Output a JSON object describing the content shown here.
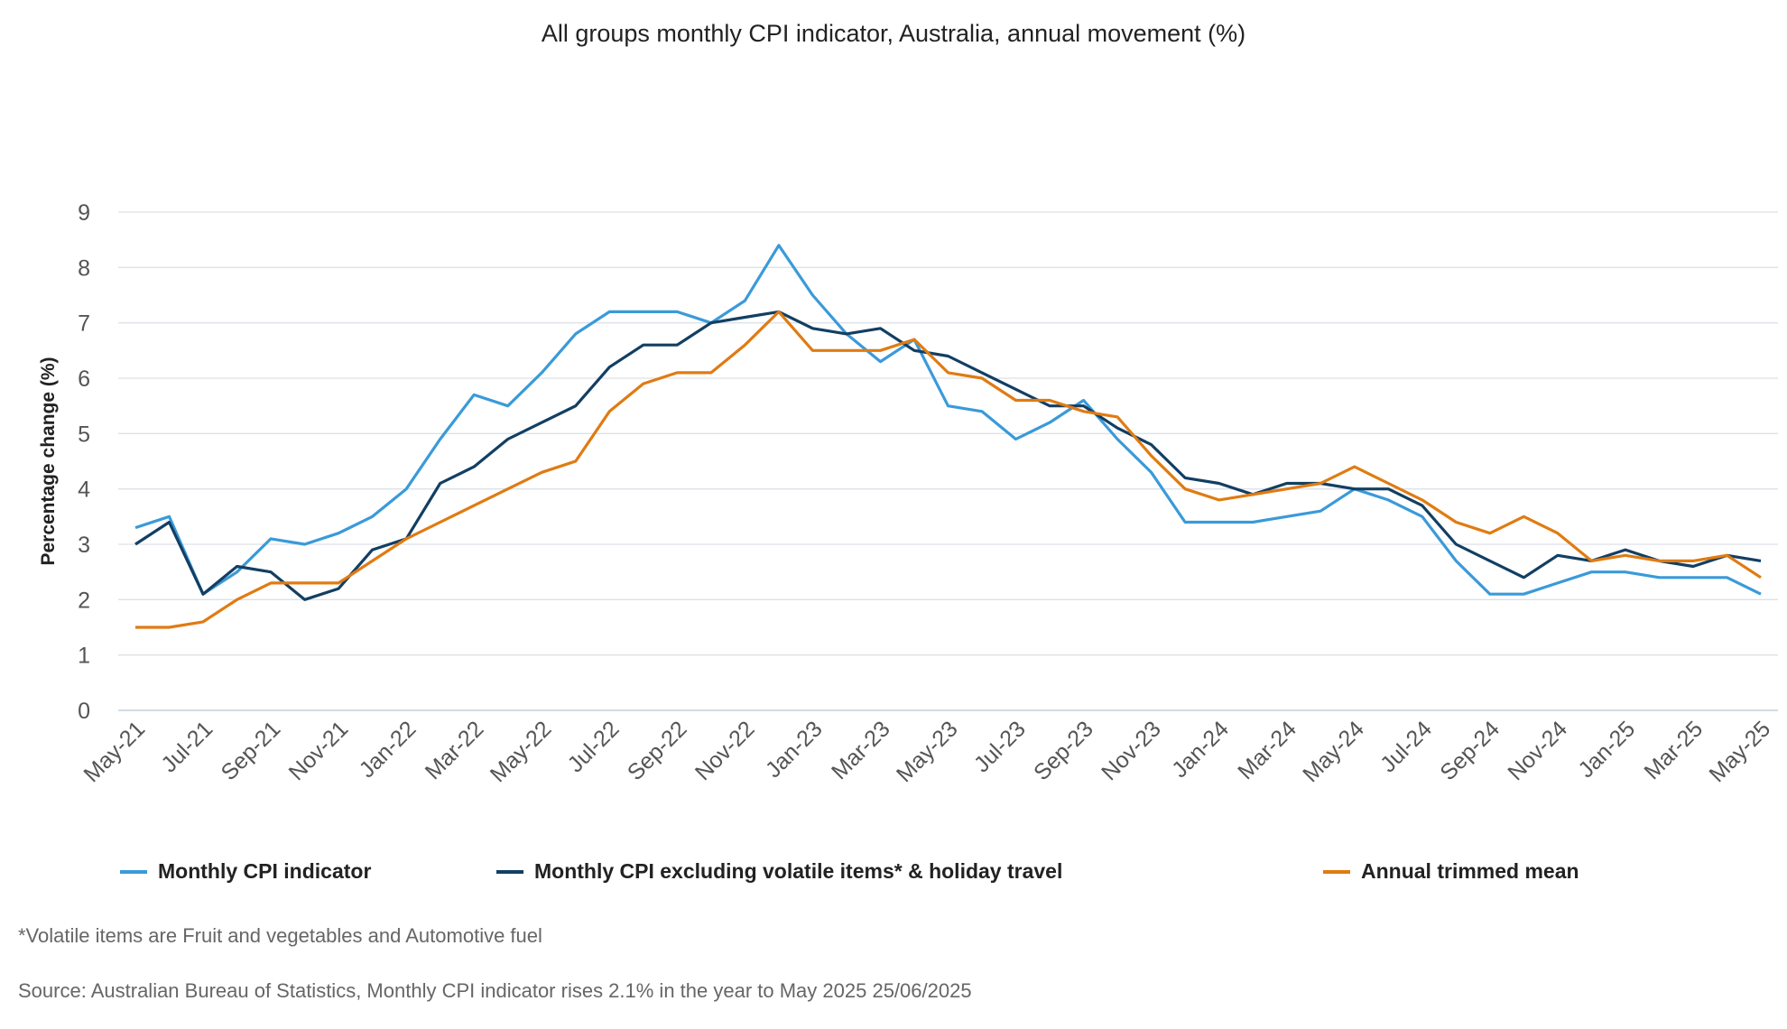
{
  "chart_data": {
    "type": "line",
    "title": "All groups monthly CPI indicator, Australia, annual movement (%)",
    "xlabel": "",
    "ylabel": "Percentage change (%)",
    "ylim": [
      0,
      9
    ],
    "yticks": [
      "0",
      "1",
      "2",
      "3",
      "4",
      "5",
      "6",
      "7",
      "8",
      "9"
    ],
    "grid": true,
    "legend_position": "bottom",
    "x": [
      "May-21",
      "Jun-21",
      "Jul-21",
      "Aug-21",
      "Sep-21",
      "Oct-21",
      "Nov-21",
      "Dec-21",
      "Jan-22",
      "Feb-22",
      "Mar-22",
      "Apr-22",
      "May-22",
      "Jun-22",
      "Jul-22",
      "Aug-22",
      "Sep-22",
      "Oct-22",
      "Nov-22",
      "Dec-22",
      "Jan-23",
      "Feb-23",
      "Mar-23",
      "Apr-23",
      "May-23",
      "Jun-23",
      "Jul-23",
      "Aug-23",
      "Sep-23",
      "Oct-23",
      "Nov-23",
      "Dec-23",
      "Jan-24",
      "Feb-24",
      "Mar-24",
      "Apr-24",
      "May-24",
      "Jun-24",
      "Jul-24",
      "Aug-24",
      "Sep-24",
      "Oct-24",
      "Nov-24",
      "Dec-24",
      "Jan-25",
      "Feb-25",
      "Mar-25",
      "Apr-25",
      "May-25"
    ],
    "xtick_labels": [
      "May-21",
      "Jul-21",
      "Sep-21",
      "Nov-21",
      "Jan-22",
      "Mar-22",
      "May-22",
      "Jul-22",
      "Sep-22",
      "Nov-22",
      "Jan-23",
      "Mar-23",
      "May-23",
      "Jul-23",
      "Sep-23",
      "Nov-23",
      "Jan-24",
      "Mar-24",
      "May-24",
      "Jul-24",
      "Sep-24",
      "Nov-24",
      "Jan-25",
      "Mar-25",
      "May-25"
    ],
    "series": [
      {
        "name": "Monthly CPI indicator",
        "color": "#3a9ad9",
        "values": [
          3.3,
          3.5,
          2.1,
          2.5,
          3.1,
          3.0,
          3.2,
          3.5,
          4.0,
          4.9,
          5.7,
          5.5,
          6.1,
          6.8,
          7.2,
          7.2,
          7.2,
          7.0,
          7.4,
          8.4,
          7.5,
          6.8,
          6.3,
          6.7,
          5.5,
          5.4,
          4.9,
          5.2,
          5.6,
          4.9,
          4.3,
          3.4,
          3.4,
          3.4,
          3.5,
          3.6,
          4.0,
          3.8,
          3.5,
          2.7,
          2.1,
          2.1,
          2.3,
          2.5,
          2.5,
          2.4,
          2.4,
          2.4,
          2.1
        ]
      },
      {
        "name": "Monthly CPI excluding volatile items* & holiday travel",
        "color": "#123f63",
        "values": [
          3.0,
          3.4,
          2.1,
          2.6,
          2.5,
          2.0,
          2.2,
          2.9,
          3.1,
          4.1,
          4.4,
          4.9,
          5.2,
          5.5,
          6.2,
          6.6,
          6.6,
          7.0,
          7.1,
          7.2,
          6.9,
          6.8,
          6.9,
          6.5,
          6.4,
          6.1,
          5.8,
          5.5,
          5.5,
          5.1,
          4.8,
          4.2,
          4.1,
          3.9,
          4.1,
          4.1,
          4.0,
          4.0,
          3.7,
          3.0,
          2.7,
          2.4,
          2.8,
          2.7,
          2.9,
          2.7,
          2.6,
          2.8,
          2.7
        ]
      },
      {
        "name": "Annual trimmed mean",
        "color": "#e07b12",
        "values": [
          1.5,
          1.5,
          1.6,
          2.0,
          2.3,
          2.3,
          2.3,
          2.7,
          3.1,
          3.4,
          3.7,
          4.0,
          4.3,
          4.5,
          5.4,
          5.9,
          6.1,
          6.1,
          6.6,
          7.2,
          6.5,
          6.5,
          6.5,
          6.7,
          6.1,
          6.0,
          5.6,
          5.6,
          5.4,
          5.3,
          4.6,
          4.0,
          3.8,
          3.9,
          4.0,
          4.1,
          4.4,
          4.1,
          3.8,
          3.4,
          3.2,
          3.5,
          3.2,
          2.7,
          2.8,
          2.7,
          2.7,
          2.8,
          2.4
        ]
      }
    ]
  },
  "footnote": "*Volatile items are Fruit and vegetables and Automotive fuel",
  "source": "Source: Australian Bureau of Statistics, Monthly CPI indicator rises 2.1% in the year to May 2025 25/06/2025"
}
